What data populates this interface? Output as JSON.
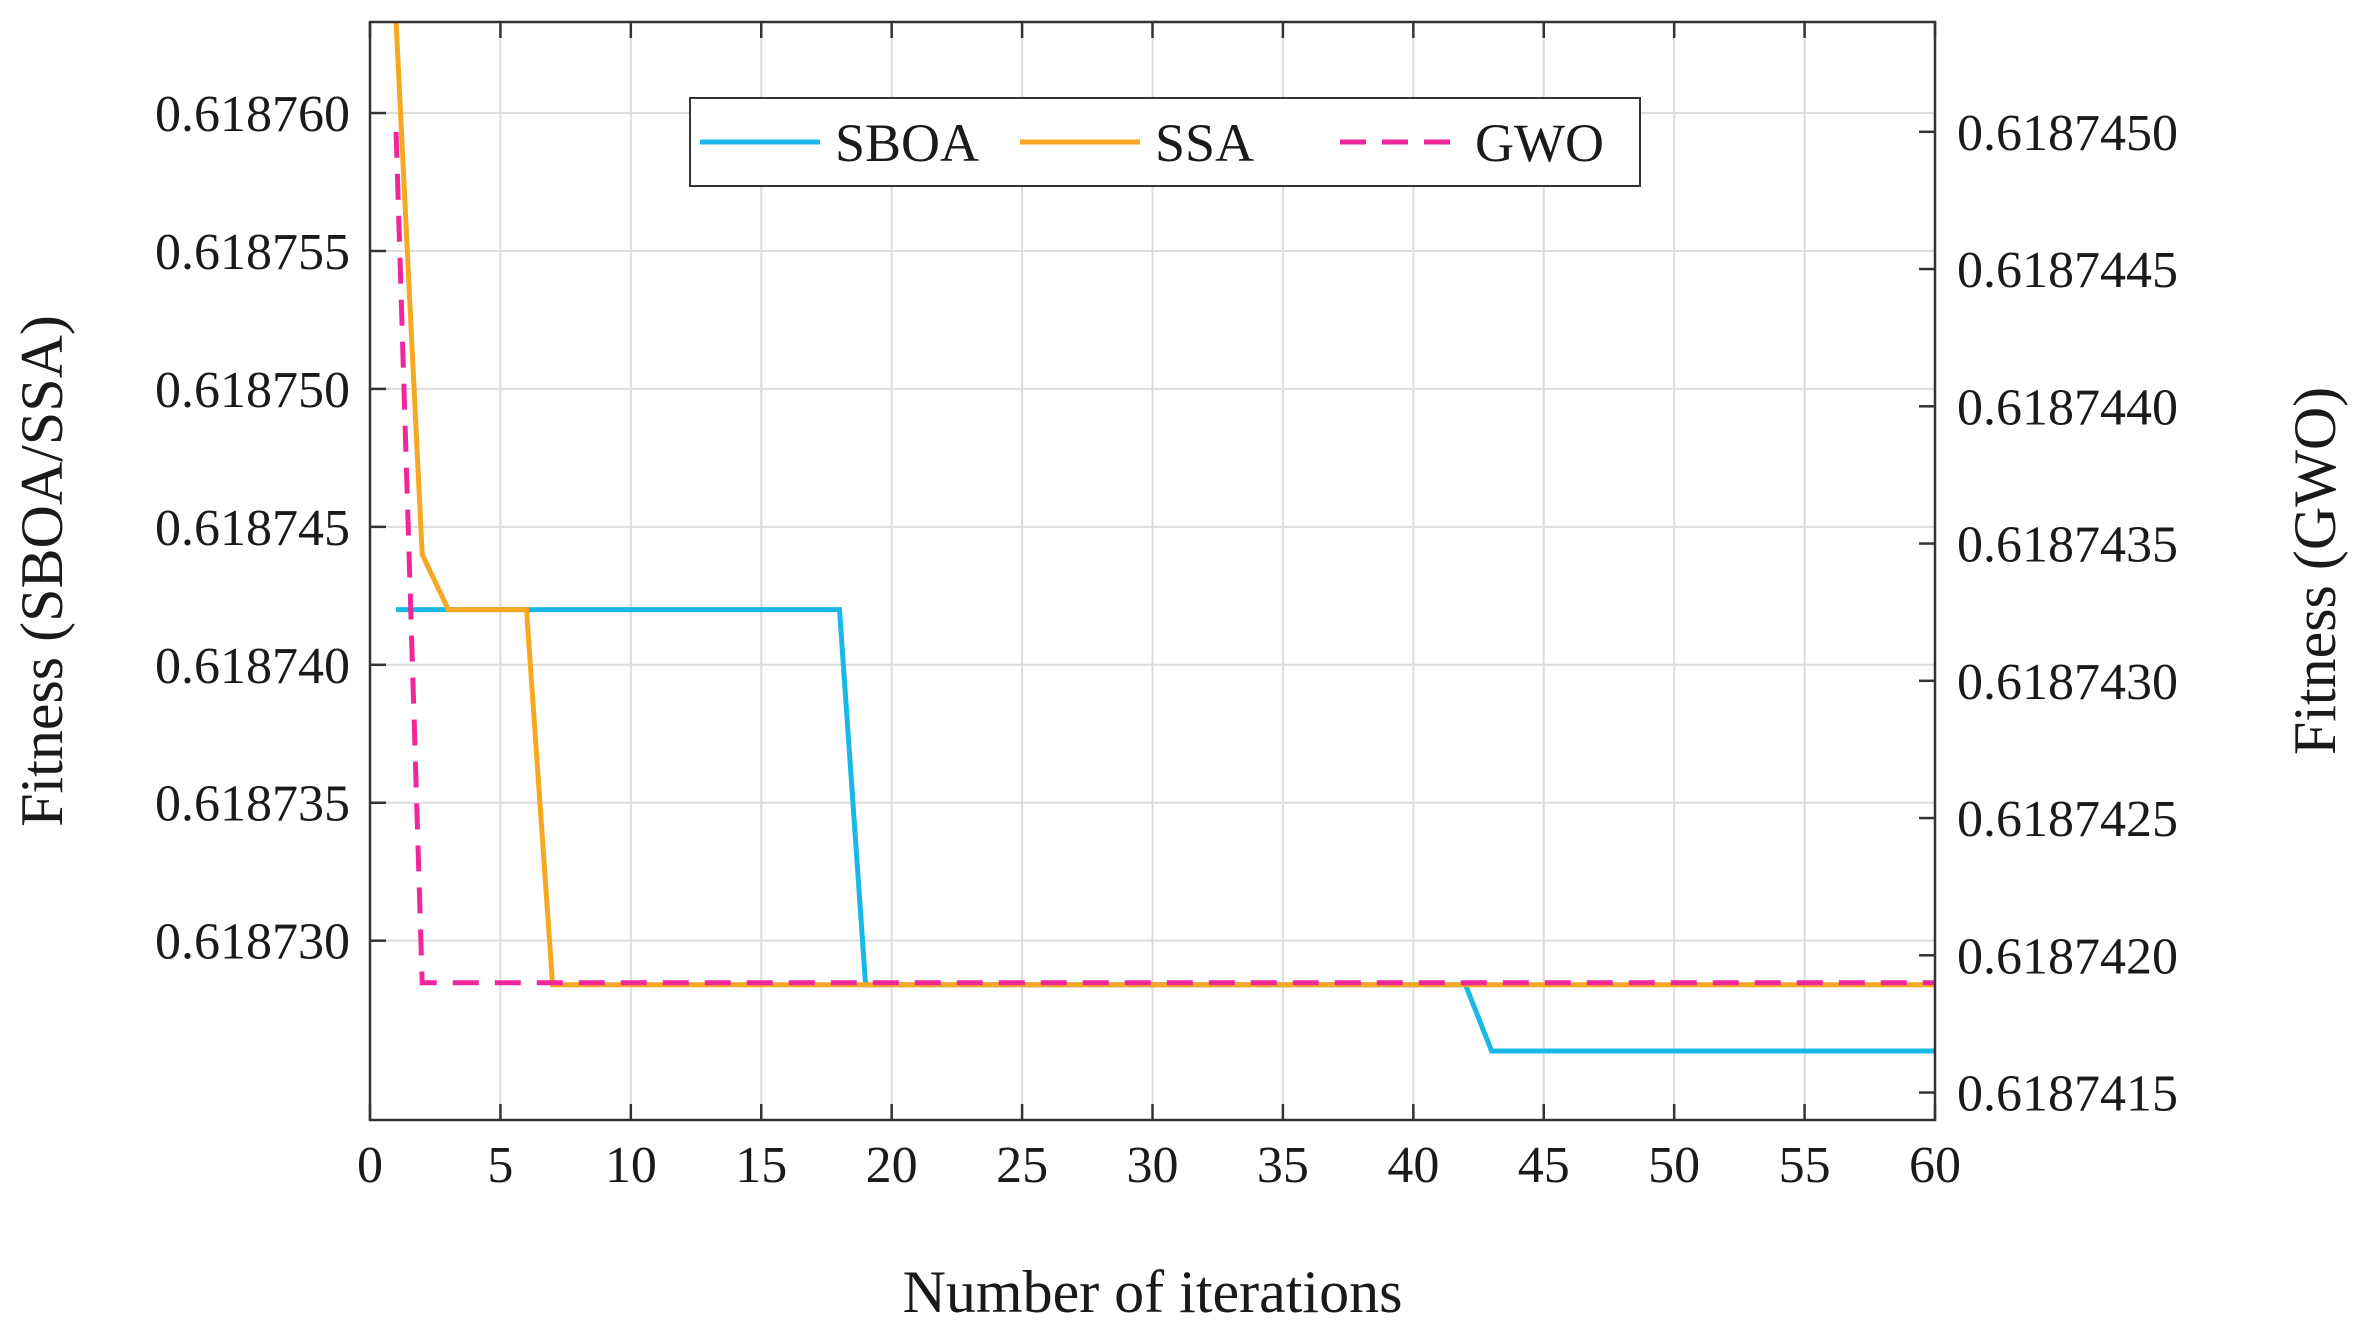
{
  "chart_data": {
    "type": "line",
    "title": "",
    "xlabel": "Number of iterations",
    "ylabel_left": "Fitness (SBOA/SSA)",
    "ylabel_right": "Fitness (GWO)",
    "xlim": [
      0,
      60
    ],
    "ylim_left": [
      0.6187235,
      0.6187633
    ],
    "ylim_right": [
      0.6187414,
      0.6187454
    ],
    "x_ticks": [
      0,
      5,
      10,
      15,
      20,
      25,
      30,
      35,
      40,
      45,
      50,
      55,
      60
    ],
    "x_tick_labels": [
      "0",
      "5",
      "10",
      "15",
      "20",
      "25",
      "30",
      "35",
      "40",
      "45",
      "50",
      "55",
      "60"
    ],
    "y_left_ticks": [
      0.61873,
      0.618735,
      0.61874,
      0.618745,
      0.61875,
      0.618755,
      0.61876
    ],
    "y_left_tick_labels": [
      "0.618730",
      "0.618735",
      "0.618740",
      "0.618745",
      "0.618750",
      "0.618755",
      "0.618760"
    ],
    "y_right_ticks": [
      0.6187415,
      0.618742,
      0.6187425,
      0.618743,
      0.6187435,
      0.618744,
      0.6187445,
      0.618745
    ],
    "y_right_tick_labels": [
      "0.6187415",
      "0.6187420",
      "0.6187425",
      "0.6187430",
      "0.6187435",
      "0.6187440",
      "0.6187445",
      "0.6187450"
    ],
    "grid": true,
    "legend_position": "top-center",
    "series": [
      {
        "name": "SBOA",
        "axis": "left",
        "color": "#1ab8e8",
        "dash": "solid",
        "x": [
          1,
          18,
          19,
          42,
          43,
          60
        ],
        "y": [
          0.618742,
          0.618742,
          0.6187284,
          0.6187284,
          0.618726,
          0.618726
        ]
      },
      {
        "name": "SSA",
        "axis": "left",
        "color": "#f7a823",
        "dash": "solid",
        "x": [
          1,
          2,
          3,
          6,
          7,
          60
        ],
        "y": [
          0.6187633,
          0.618744,
          0.618742,
          0.618742,
          0.6187284,
          0.6187284
        ]
      },
      {
        "name": "GWO",
        "axis": "right",
        "color": "#f0269b",
        "dash": "dashed",
        "x": [
          1,
          2,
          60
        ],
        "y": [
          0.618745,
          0.6187419,
          0.6187419
        ]
      }
    ]
  }
}
